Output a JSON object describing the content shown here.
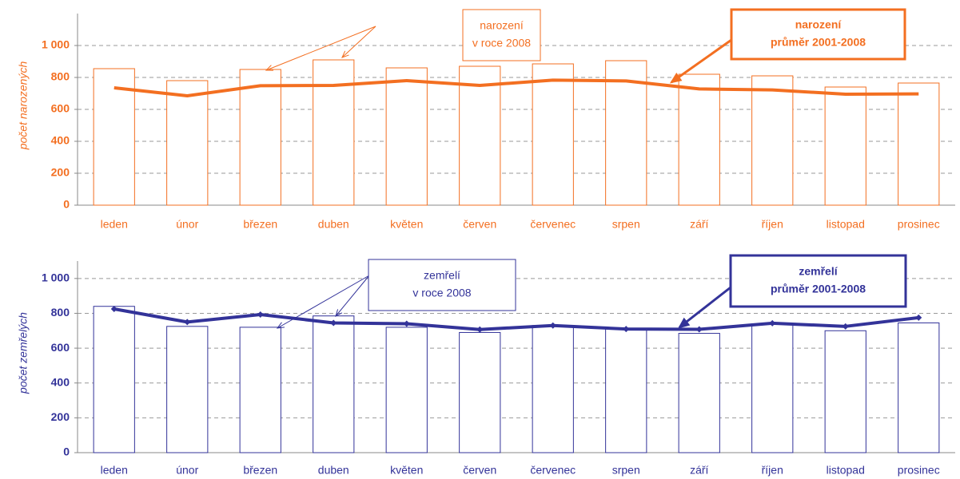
{
  "chart_data": [
    {
      "type": "bar_line",
      "y_label": "počet narozených",
      "axis_color": "#f36f21",
      "categories": [
        "leden",
        "únor",
        "březen",
        "duben",
        "květen",
        "červen",
        "červenec",
        "srpen",
        "září",
        "říjen",
        "listopad",
        "prosinec"
      ],
      "series": [
        {
          "label": [
            "narození",
            "v roce 2008"
          ],
          "kind": "bar",
          "color": "#f36f21",
          "values": [
            855,
            780,
            850,
            910,
            860,
            870,
            885,
            905,
            820,
            810,
            740,
            765
          ]
        },
        {
          "label": [
            "narození",
            "průměr 2001-2008"
          ],
          "kind": "line",
          "color": "#f36f21",
          "markers": false,
          "values": [
            735,
            685,
            748,
            750,
            780,
            750,
            783,
            778,
            728,
            722,
            695,
            697
          ]
        }
      ],
      "ylim": [
        0,
        1200
      ],
      "yticks": [
        0,
        200,
        400,
        600,
        800,
        {
          "value": 1000,
          "label": "1 000"
        }
      ],
      "grid": true
    },
    {
      "type": "bar_line",
      "y_label": "počet zemřelých",
      "axis_color": "#333399",
      "categories": [
        "leden",
        "únor",
        "březen",
        "duben",
        "květen",
        "červen",
        "červenec",
        "srpen",
        "září",
        "říjen",
        "listopad",
        "prosinec"
      ],
      "series": [
        {
          "label": [
            "zemřelí",
            "v roce 2008"
          ],
          "kind": "bar",
          "color": "#333399",
          "values": [
            840,
            725,
            720,
            785,
            720,
            690,
            730,
            710,
            685,
            740,
            700,
            745
          ]
        },
        {
          "label": [
            "zemřelí",
            "průměr 2001-2008"
          ],
          "kind": "line",
          "color": "#333399",
          "markers": true,
          "values": [
            825,
            750,
            793,
            745,
            740,
            707,
            730,
            710,
            708,
            743,
            725,
            775
          ]
        }
      ],
      "ylim": [
        0,
        1100
      ],
      "yticks": [
        0,
        200,
        400,
        600,
        800,
        {
          "value": 1000,
          "label": "1 000"
        }
      ],
      "grid": true
    }
  ]
}
